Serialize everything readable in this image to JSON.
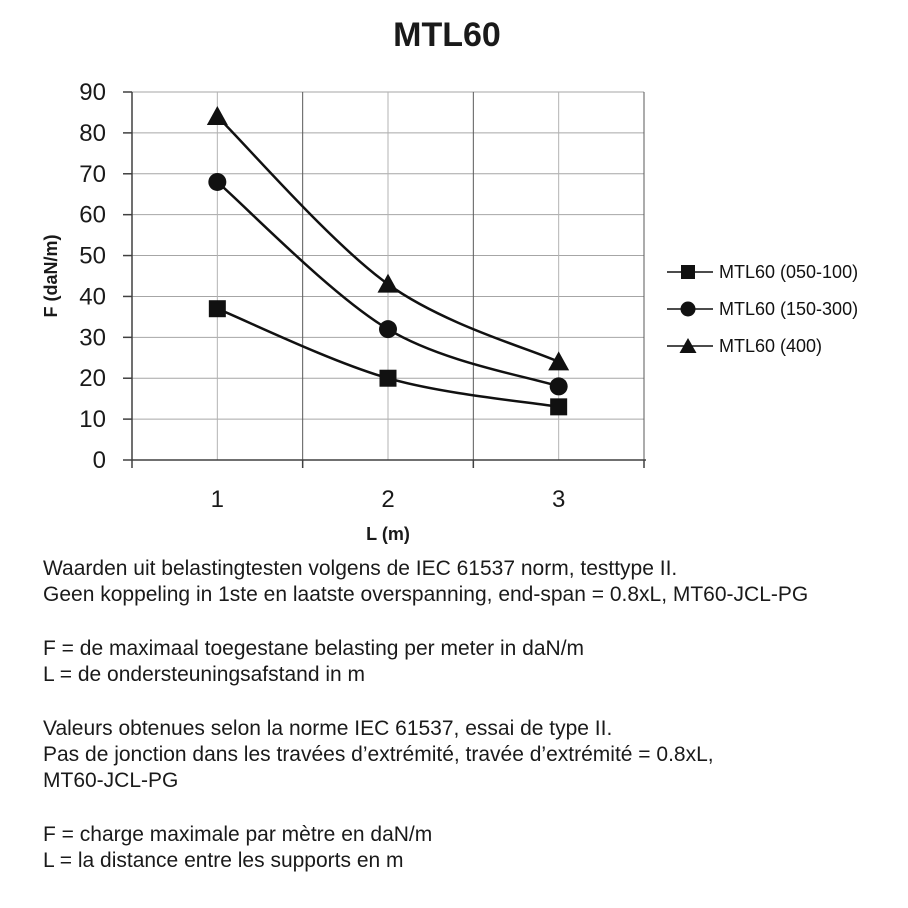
{
  "chart_data": {
    "type": "line",
    "title": "MTL60",
    "xlabel": "L (m)",
    "ylabel": "F (daN/m)",
    "categories": [
      "1",
      "2",
      "3"
    ],
    "ylim": [
      0,
      90
    ],
    "ytick_step": 10,
    "grid": true,
    "smooth_lines": true,
    "legend_position": "right",
    "series": [
      {
        "name": "MTL60 (050-100)",
        "marker": "square",
        "values": [
          37,
          20,
          13
        ]
      },
      {
        "name": "MTL60 (150-300)",
        "marker": "circle",
        "values": [
          68,
          32,
          18
        ]
      },
      {
        "name": "MTL60 (400)",
        "marker": "triangle",
        "values": [
          84,
          43,
          24
        ]
      }
    ],
    "colors": {
      "series": "#111111",
      "grid_horizontal": "#a6a6a6",
      "grid_vertical_boundary": "#595959",
      "grid_vertical_center": "#b3b3b3",
      "axis": "#404040",
      "text": "#1a1a1a"
    }
  },
  "notes": {
    "nl_test": [
      "Waarden uit belastingtesten volgens de IEC 61537 norm, testtype II.",
      "Geen koppeling in 1ste en laatste overspanning, end-span = 0.8xL, MT60-JCL-PG"
    ],
    "nl_defs": [
      "F = de maximaal toegestane belasting per meter in daN/m",
      "L = de ondersteuningsafstand in m"
    ],
    "fr_test": [
      "Valeurs obtenues selon la norme IEC 61537, essai de type II.",
      "Pas de jonction dans les travées d’extrémité, travée d’extrémité = 0.8xL,",
      "MT60-JCL-PG"
    ],
    "fr_defs": [
      "F = charge maximale par mètre en daN/m",
      "L = la distance entre les supports en m"
    ]
  }
}
